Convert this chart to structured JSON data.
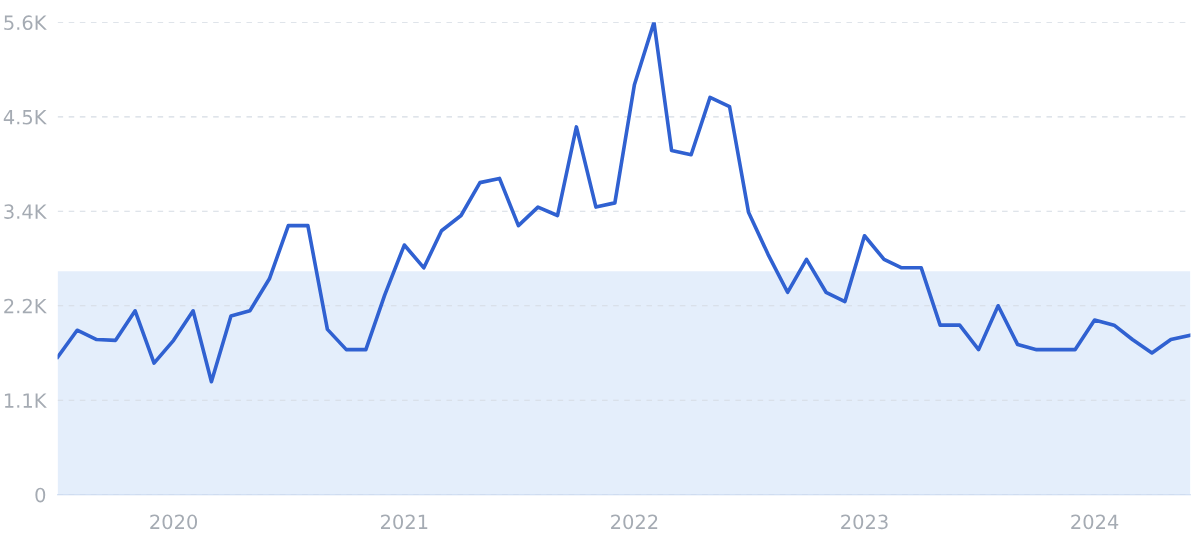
{
  "chart_data": {
    "type": "line",
    "x": [
      "2019-07",
      "2019-08",
      "2019-09",
      "2019-10",
      "2019-11",
      "2019-12",
      "2020-01",
      "2020-02",
      "2020-03",
      "2020-04",
      "2020-05",
      "2020-06",
      "2020-07",
      "2020-08",
      "2020-09",
      "2020-10",
      "2020-11",
      "2020-12",
      "2021-01",
      "2021-02",
      "2021-03",
      "2021-04",
      "2021-05",
      "2021-06",
      "2021-07",
      "2021-08",
      "2021-09",
      "2021-10",
      "2021-11",
      "2021-12",
      "2022-01",
      "2022-02",
      "2022-03",
      "2022-04",
      "2022-05",
      "2022-06",
      "2022-07",
      "2022-08",
      "2022-09",
      "2022-10",
      "2022-11",
      "2022-12",
      "2023-01",
      "2023-02",
      "2023-03",
      "2023-04",
      "2023-05",
      "2023-06",
      "2023-07",
      "2023-08",
      "2023-09",
      "2023-10",
      "2023-11",
      "2023-12",
      "2024-01",
      "2024-02",
      "2024-03",
      "2024-04",
      "2024-05",
      "2024-06"
    ],
    "series": [
      {
        "color": "#3061d1",
        "values": [
          1630,
          1950,
          1840,
          1830,
          2180,
          1560,
          1830,
          2180,
          1340,
          2120,
          2180,
          2560,
          3190,
          3190,
          1960,
          1720,
          1720,
          2370,
          2960,
          2690,
          3130,
          3310,
          3700,
          3750,
          3190,
          3410,
          3310,
          4360,
          3410,
          3460,
          4860,
          5600,
          4080,
          4030,
          4710,
          4600,
          3350,
          2850,
          2400,
          2790,
          2400,
          2290,
          3070,
          2790,
          2690,
          2690,
          2010,
          2010,
          1720,
          2240,
          1780,
          1720,
          1720,
          1720,
          2070,
          2010,
          1840,
          1680,
          1840,
          1890
        ]
      }
    ],
    "xlim": [
      "2019-07",
      "2024-06"
    ],
    "xticks": [
      {
        "value": "2020-01",
        "label": "2020"
      },
      {
        "value": "2021-01",
        "label": "2021"
      },
      {
        "value": "2022-01",
        "label": "2022"
      },
      {
        "value": "2023-01",
        "label": "2023"
      },
      {
        "value": "2024-01",
        "label": "2024"
      }
    ],
    "ylim": [
      0,
      5600
    ],
    "yticks": [
      0,
      {
        "value": 1120,
        "label": "1.1K"
      },
      {
        "value": 2240,
        "label": "2.2K"
      },
      {
        "value": 3360,
        "label": "3.4K"
      },
      {
        "value": 4480,
        "label": "4.5K"
      },
      {
        "value": 5600,
        "label": "5.6K"
      }
    ],
    "bands": [
      {
        "axis": "y",
        "from": 0,
        "to": 2650,
        "color": "#e4eefb"
      }
    ],
    "grid": "y",
    "line_style": "solid",
    "marker": "none"
  }
}
